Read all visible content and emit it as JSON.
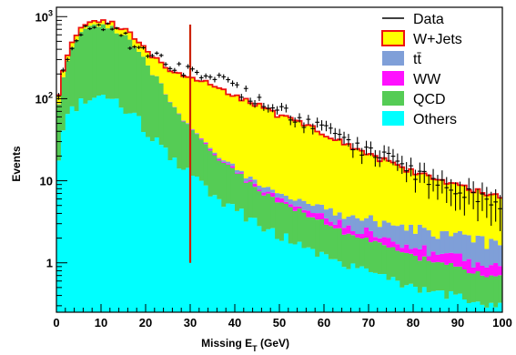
{
  "chart_data": {
    "type": "stacked-histogram",
    "title": "",
    "xlabel": "Missing E_T (GeV)",
    "xlabel_main": "Missing E",
    "xlabel_sub": "T",
    "xlabel_unit": " (GeV)",
    "ylabel": "Events",
    "xlim": [
      0,
      100
    ],
    "ylim": [
      0.25,
      1300
    ],
    "yscale": "log",
    "x_ticks": [
      "0",
      "10",
      "20",
      "30",
      "40",
      "50",
      "60",
      "70",
      "80",
      "90",
      "100"
    ],
    "y_ticks": [
      {
        "base": "10",
        "exp": "3"
      },
      {
        "base": "10",
        "exp": "2"
      },
      {
        "base": "10",
        "exp": ""
      },
      {
        "base": "1",
        "exp": ""
      }
    ],
    "bin_width": 1,
    "cut_line": {
      "x": 30,
      "y_low": 1.0,
      "y_high": 800,
      "color": "#cc2200"
    },
    "legend_position": "top-right",
    "anchors": {
      "others": [
        [
          0,
          15
        ],
        [
          2,
          55
        ],
        [
          5,
          90
        ],
        [
          8,
          100
        ],
        [
          10,
          105
        ],
        [
          12,
          100
        ],
        [
          15,
          80
        ],
        [
          18,
          60
        ],
        [
          20,
          40
        ],
        [
          25,
          22
        ],
        [
          30,
          12
        ],
        [
          35,
          7
        ],
        [
          40,
          4.5
        ],
        [
          45,
          3
        ],
        [
          50,
          2.2
        ],
        [
          60,
          1.2
        ],
        [
          70,
          0.75
        ],
        [
          80,
          0.5
        ],
        [
          90,
          0.4
        ],
        [
          100,
          0.3
        ]
      ],
      "qcd": [
        [
          0,
          45
        ],
        [
          2,
          190
        ],
        [
          4,
          380
        ],
        [
          6,
          560
        ],
        [
          8,
          670
        ],
        [
          10,
          700
        ],
        [
          12,
          650
        ],
        [
          15,
          520
        ],
        [
          18,
          340
        ],
        [
          20,
          240
        ],
        [
          23,
          130
        ],
        [
          25,
          80
        ],
        [
          28,
          45
        ],
        [
          30,
          30
        ],
        [
          35,
          15
        ],
        [
          40,
          8
        ],
        [
          45,
          5
        ],
        [
          50,
          3.5
        ],
        [
          60,
          1.8
        ],
        [
          70,
          1.1
        ],
        [
          80,
          0.7
        ],
        [
          90,
          0.5
        ],
        [
          100,
          0.35
        ]
      ],
      "ww": [
        [
          0,
          0.3
        ],
        [
          15,
          0.4
        ],
        [
          25,
          0.5
        ],
        [
          35,
          0.6
        ],
        [
          45,
          0.6
        ],
        [
          55,
          0.55
        ],
        [
          65,
          0.5
        ],
        [
          75,
          0.4
        ],
        [
          85,
          0.3
        ],
        [
          100,
          0.22
        ]
      ],
      "tt": [
        [
          0,
          0.3
        ],
        [
          20,
          0.5
        ],
        [
          30,
          0.7
        ],
        [
          40,
          0.9
        ],
        [
          50,
          1.0
        ],
        [
          60,
          1.1
        ],
        [
          70,
          1.15
        ],
        [
          80,
          1.1
        ],
        [
          90,
          0.95
        ],
        [
          100,
          0.85
        ]
      ],
      "wjets": [
        [
          0,
          20
        ],
        [
          3,
          55
        ],
        [
          5,
          80
        ],
        [
          8,
          90
        ],
        [
          10,
          95
        ],
        [
          15,
          110
        ],
        [
          20,
          120
        ],
        [
          25,
          130
        ],
        [
          28,
          140
        ],
        [
          30,
          140
        ],
        [
          35,
          125
        ],
        [
          40,
          95
        ],
        [
          45,
          75
        ],
        [
          50,
          55
        ],
        [
          55,
          45
        ],
        [
          60,
          33
        ],
        [
          65,
          25
        ],
        [
          70,
          17
        ],
        [
          75,
          14
        ],
        [
          80,
          10
        ],
        [
          85,
          8
        ],
        [
          90,
          6.5
        ],
        [
          95,
          5.5
        ],
        [
          100,
          4.5
        ]
      ],
      "data": [
        [
          0,
          65
        ],
        [
          2,
          300
        ],
        [
          4,
          560
        ],
        [
          6,
          690
        ],
        [
          8,
          720
        ],
        [
          10,
          720
        ],
        [
          12,
          690
        ],
        [
          15,
          560
        ],
        [
          18,
          420
        ],
        [
          20,
          380
        ],
        [
          23,
          300
        ],
        [
          25,
          270
        ],
        [
          28,
          230
        ],
        [
          30,
          210
        ],
        [
          35,
          190
        ],
        [
          40,
          140
        ],
        [
          45,
          100
        ],
        [
          50,
          75
        ],
        [
          55,
          55
        ],
        [
          60,
          42
        ],
        [
          65,
          30
        ],
        [
          70,
          22
        ],
        [
          75,
          18
        ],
        [
          80,
          13
        ],
        [
          85,
          10
        ],
        [
          90,
          8
        ],
        [
          95,
          6
        ],
        [
          100,
          5
        ]
      ]
    },
    "series": [
      {
        "name": "Data",
        "key": "data",
        "color": "#000000",
        "style": "points"
      },
      {
        "name": "W+Jets",
        "key": "wjets",
        "color": "#ffff00",
        "edge": "#ee1111",
        "style": "fill"
      },
      {
        "name": "tt̄",
        "key": "tt",
        "color": "#7f9fd8",
        "style": "fill"
      },
      {
        "name": "WW",
        "key": "ww",
        "color": "#ff10ff",
        "style": "fill"
      },
      {
        "name": "QCD",
        "key": "qcd",
        "color": "#55cc55",
        "style": "fill"
      },
      {
        "name": "Others",
        "key": "others",
        "color": "#00ffff",
        "style": "fill"
      }
    ]
  }
}
